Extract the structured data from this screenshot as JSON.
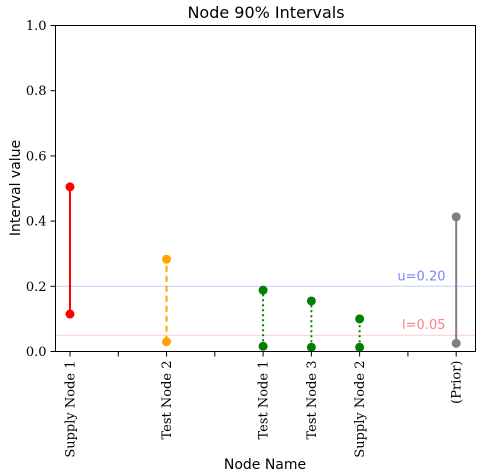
{
  "chart_data": {
    "type": "interval",
    "title": "Node 90% Intervals",
    "xlabel": "Node Name",
    "ylabel": "Interval value",
    "ylim": [
      0,
      1
    ],
    "yticks": [
      "0.0",
      "0.2",
      "0.4",
      "0.6",
      "0.8",
      "1.0"
    ],
    "ytick_values": [
      0,
      0.2,
      0.4,
      0.6,
      0.8,
      1.0
    ],
    "grid": false,
    "intervals": [
      {
        "label": "Supply Node 1",
        "pos": 0,
        "low": 0.115,
        "high": 0.505,
        "color": "#ff0000",
        "style": "solid"
      },
      {
        "label": "Test Node 2",
        "pos": 2,
        "low": 0.03,
        "high": 0.283,
        "color": "#ffa500",
        "style": "dashed"
      },
      {
        "label": "Test Node 1",
        "pos": 4,
        "low": 0.016,
        "high": 0.188,
        "color": "#008000",
        "style": "dotted"
      },
      {
        "label": "Test Node 3",
        "pos": 5,
        "low": 0.013,
        "high": 0.155,
        "color": "#008000",
        "style": "dotted"
      },
      {
        "label": "Supply Node 2",
        "pos": 6,
        "low": 0.013,
        "high": 0.1,
        "color": "#008000",
        "style": "dotted"
      },
      {
        "label": "(Prior)",
        "pos": 8,
        "low": 0.025,
        "high": 0.413,
        "color": "#808080",
        "style": "solid"
      }
    ],
    "minor_tick_positions": [
      1,
      3,
      7
    ],
    "xlim": [
      -0.3,
      8.4
    ],
    "reference_lines": [
      {
        "name": "u",
        "value": 0.2,
        "label": "u=0.20",
        "line_color": "#ccccff",
        "text_color": "#8080ff"
      },
      {
        "name": "l",
        "value": 0.05,
        "label": "l=0.05",
        "line_color": "#ffcccc",
        "text_color": "#ff8080"
      }
    ]
  }
}
